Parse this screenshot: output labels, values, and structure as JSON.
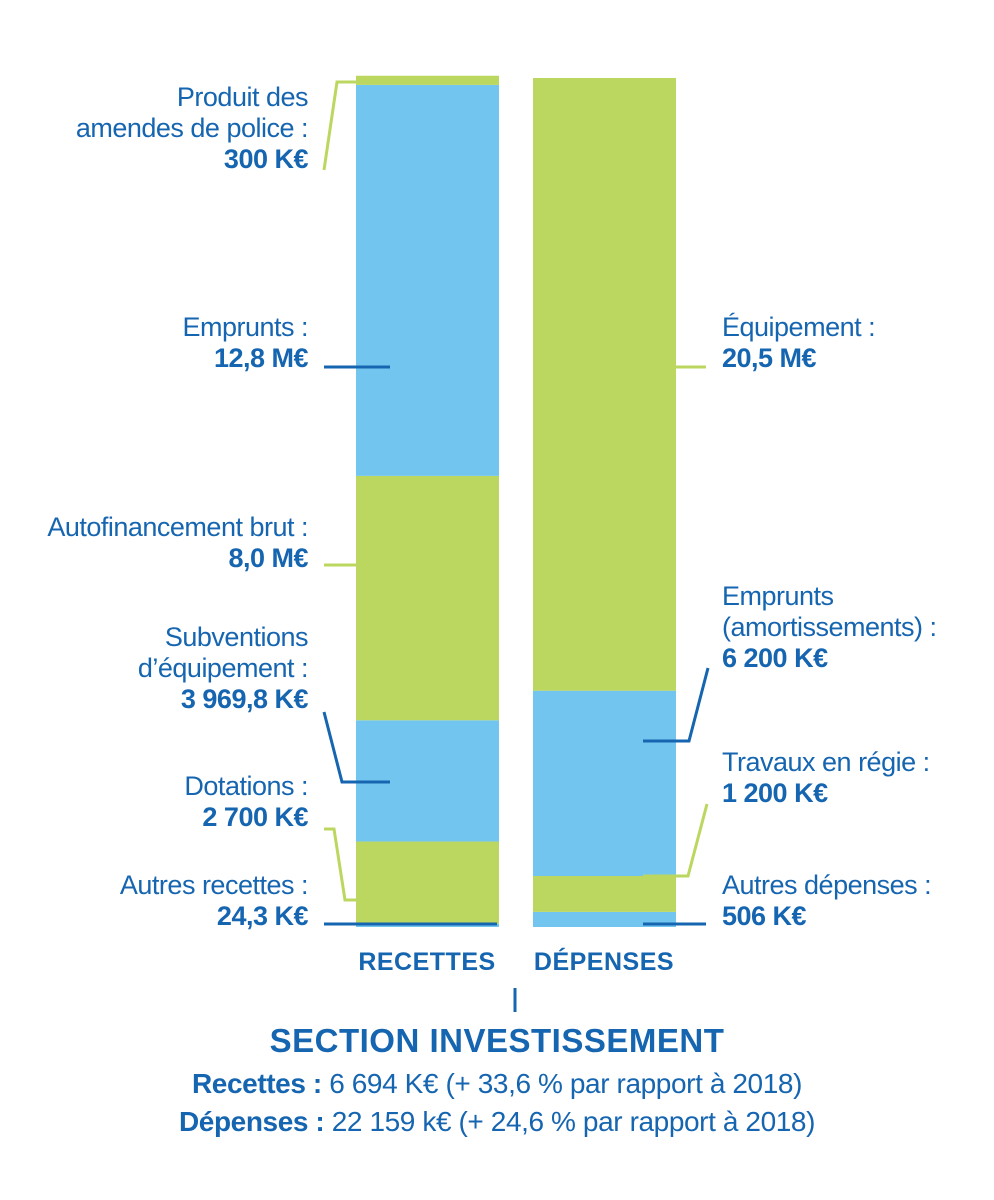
{
  "colors": {
    "green": "#bcd75f",
    "blue": "#72c5ef",
    "text": "#1565b0"
  },
  "chart_data": {
    "type": "bar",
    "stacked": true,
    "unit": "K€",
    "categories": [
      "RECETTES",
      "DÉPENSES"
    ],
    "recettes": [
      {
        "name_lines": [
          "Autres recettes :"
        ],
        "value_label": "24,3 K€",
        "value": 24.3,
        "color": "blue"
      },
      {
        "name_lines": [
          "Dotations :"
        ],
        "value_label": "2 700 K€",
        "value": 2700,
        "color": "green"
      },
      {
        "name_lines": [
          "Subventions",
          "d’équipement :"
        ],
        "value_label": "3 969,8 K€",
        "value": 3969.8,
        "color": "blue"
      },
      {
        "name_lines": [
          "Autofinancement brut :"
        ],
        "value_label": "8,0 M€",
        "value": 8000,
        "color": "green"
      },
      {
        "name_lines": [
          "Emprunts :"
        ],
        "value_label": "12,8 M€",
        "value": 12800,
        "color": "blue"
      },
      {
        "name_lines": [
          "Produit des",
          "amendes de police :"
        ],
        "value_label": "300 K€",
        "value": 300,
        "color": "green"
      }
    ],
    "depenses": [
      {
        "name_lines": [
          "Autres dépenses :"
        ],
        "value_label": "506 K€",
        "value": 506,
        "color": "blue"
      },
      {
        "name_lines": [
          "Travaux en régie :"
        ],
        "value_label": "1 200 K€",
        "value": 1200,
        "color": "green"
      },
      {
        "name_lines": [
          "Emprunts",
          "(amortissements) :"
        ],
        "value_label": "6 200 K€",
        "value": 6200,
        "color": "blue"
      },
      {
        "name_lines": [
          "Équipement :"
        ],
        "value_label": "20,5 M€",
        "value": 20500,
        "color": "green"
      }
    ]
  },
  "section": {
    "title": "SECTION INVESTISSEMENT",
    "recettes_label": "Recettes :",
    "recettes_text": " 6 694 K€ (+ 33,6 % par rapport à 2018)",
    "depenses_label": "Dépenses :",
    "depenses_text": " 22 159 k€ (+ 24,6 % par rapport à 2018)"
  }
}
